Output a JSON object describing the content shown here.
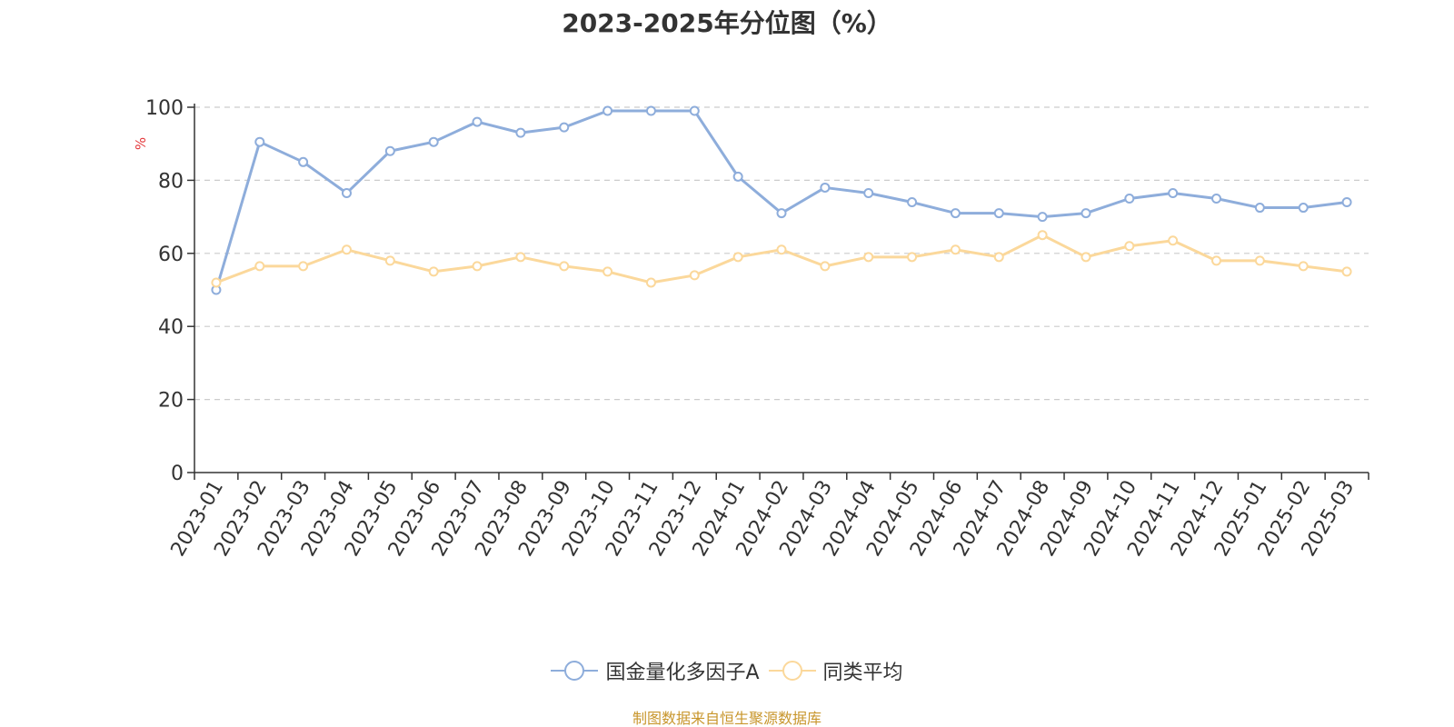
{
  "chart_data": {
    "type": "line",
    "title": "2023-2025年分位图（%）",
    "xlabel": "",
    "ylabel": "%",
    "ylim": [
      0,
      100
    ],
    "yticks": [
      0,
      20,
      40,
      60,
      80,
      100
    ],
    "grid": "horizontal dashed",
    "legend_position": "bottom-center",
    "categories": [
      "2023-01",
      "2023-02",
      "2023-03",
      "2023-04",
      "2023-05",
      "2023-06",
      "2023-07",
      "2023-08",
      "2023-09",
      "2023-10",
      "2023-11",
      "2023-12",
      "2024-01",
      "2024-02",
      "2024-03",
      "2024-04",
      "2024-05",
      "2024-06",
      "2024-07",
      "2024-08",
      "2024-09",
      "2024-10",
      "2024-11",
      "2024-12",
      "2025-01",
      "2025-02",
      "2025-03"
    ],
    "series": [
      {
        "name": "国金量化多因子A",
        "color": "#8EADDB",
        "values": [
          50.0,
          90.5,
          85.0,
          76.5,
          88.0,
          90.5,
          96.0,
          93.0,
          94.5,
          99.0,
          99.0,
          99.0,
          81.0,
          71.0,
          78.0,
          76.5,
          74.0,
          71.0,
          71.0,
          70.0,
          71.0,
          75.0,
          76.5,
          75.0,
          72.5,
          72.5,
          74.0
        ]
      },
      {
        "name": "同类平均",
        "color": "#FBD89B",
        "values": [
          52.0,
          56.5,
          56.5,
          61.0,
          58.0,
          55.0,
          56.5,
          59.0,
          56.5,
          55.0,
          52.0,
          54.0,
          59.0,
          61.0,
          56.5,
          59.0,
          59.0,
          61.0,
          59.0,
          65.0,
          59.0,
          62.0,
          63.5,
          58.0,
          58.0,
          56.5,
          55.0
        ]
      }
    ]
  },
  "source_note": "制图数据来自恒生聚源数据库",
  "colors": {
    "title": "#333333",
    "axis": "#333333",
    "tick_label": "#333333",
    "ylabel": "#E4393C",
    "grid": "#CCCCCC",
    "source_note": "#C8962C"
  }
}
